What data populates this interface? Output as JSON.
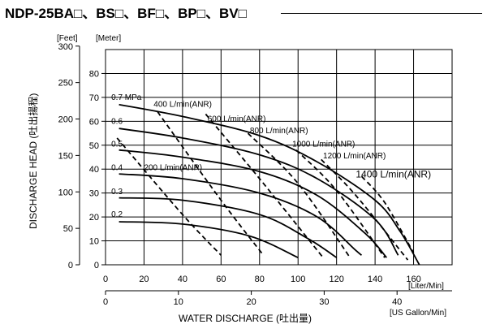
{
  "header": {
    "title": "NDP-25BA□、BS□、BF□、BP□、BV□"
  },
  "chart_data": {
    "type": "line",
    "xlabel": "WATER  DISCHARGE (吐出量)",
    "ylabel": "DISCHARGE  HEAD (吐出揚程)",
    "x_unit_primary": "[Liter/Min]",
    "x_unit_secondary": "[US Gallon/Min]",
    "y_unit_left": "[Feet]",
    "y_unit_right": "[Meter]",
    "xlim": [
      0,
      180
    ],
    "ylim_meter": [
      0,
      90
    ],
    "x_ticks": [
      0,
      20,
      40,
      60,
      80,
      100,
      120,
      140,
      160
    ],
    "x_ticks_gallon": [
      0,
      10,
      20,
      30,
      40
    ],
    "y_ticks_meter": [
      0,
      10,
      20,
      30,
      40,
      50,
      60,
      70,
      80
    ],
    "y_ticks_feet": [
      0,
      50,
      100,
      150,
      200,
      250,
      300
    ],
    "grid": true,
    "pressure_series": [
      {
        "name": "0.7 MPa",
        "points": [
          [
            7,
            67
          ],
          [
            40,
            62
          ],
          [
            80,
            54
          ],
          [
            110,
            43
          ],
          [
            140,
            27
          ],
          [
            153,
            14
          ],
          [
            163,
            0
          ]
        ]
      },
      {
        "name": "0.6",
        "points": [
          [
            7,
            57
          ],
          [
            40,
            53
          ],
          [
            80,
            46
          ],
          [
            110,
            36
          ],
          [
            140,
            19
          ],
          [
            152,
            4
          ]
        ]
      },
      {
        "name": "0.5",
        "points": [
          [
            7,
            48
          ],
          [
            40,
            45
          ],
          [
            80,
            39
          ],
          [
            110,
            29
          ],
          [
            135,
            13
          ],
          [
            146,
            3
          ]
        ]
      },
      {
        "name": "0.4",
        "points": [
          [
            7,
            38
          ],
          [
            40,
            36
          ],
          [
            80,
            30
          ],
          [
            110,
            20
          ],
          [
            130,
            6
          ],
          [
            133,
            4
          ]
        ]
      },
      {
        "name": "0.3",
        "points": [
          [
            7,
            28
          ],
          [
            40,
            27
          ],
          [
            80,
            21
          ],
          [
            105,
            11
          ],
          [
            120,
            3
          ]
        ]
      },
      {
        "name": "0.2",
        "points": [
          [
            7,
            18
          ],
          [
            40,
            17
          ],
          [
            75,
            12
          ],
          [
            100,
            3
          ]
        ]
      }
    ],
    "flow_series": [
      {
        "name": "200 L/min(ANR)",
        "points": [
          [
            6,
            53
          ],
          [
            40,
            21
          ],
          [
            60,
            4
          ]
        ]
      },
      {
        "name": "400 L/min(ANR)",
        "points": [
          [
            27,
            64
          ],
          [
            60,
            27
          ],
          [
            82,
            4
          ]
        ]
      },
      {
        "name": "600 L/min(ANR)",
        "points": [
          [
            52,
            63
          ],
          [
            80,
            36
          ],
          [
            113,
            3
          ]
        ]
      },
      {
        "name": "800 L/min(ANR)",
        "points": [
          [
            74,
            55
          ],
          [
            100,
            34
          ],
          [
            127,
            3
          ]
        ]
      },
      {
        "name": "1000 L/min(ANR)",
        "points": [
          [
            99,
            48
          ],
          [
            120,
            31
          ],
          [
            145,
            3
          ]
        ]
      },
      {
        "name": "1200 L/min(ANR)",
        "points": [
          [
            112,
            44
          ],
          [
            130,
            29
          ],
          [
            157,
            2
          ]
        ]
      },
      {
        "name": "1400 L/min(ANR)",
        "points": [
          [
            133,
            37
          ],
          [
            145,
            26
          ],
          [
            160,
            5
          ]
        ]
      }
    ],
    "pressure_labels": [
      "0.7 MPa",
      "0.6",
      "0.5",
      "0.4",
      "0.3",
      "0.2"
    ],
    "flow_labels": [
      "200 L/min(ANR)",
      "400 L/min(ANR)",
      "600 L/min(ANR)",
      "800 L/min(ANR)",
      "1000 L/min(ANR)",
      "1200 L/min(ANR)",
      "1400 L/min(ANR)"
    ]
  }
}
